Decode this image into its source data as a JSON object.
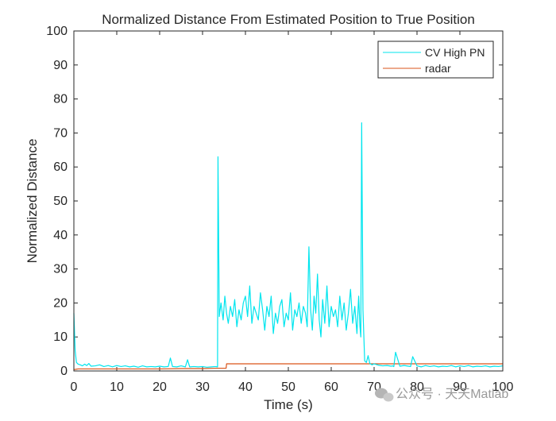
{
  "chart_data": {
    "type": "line",
    "title": "Normalized Distance From Estimated Position to True Position",
    "xlabel": "Time (s)",
    "ylabel": "Normalized Distance",
    "xlim": [
      0,
      100
    ],
    "ylim": [
      0,
      100
    ],
    "xticks": [
      0,
      10,
      20,
      30,
      40,
      50,
      60,
      70,
      80,
      90,
      100
    ],
    "yticks": [
      0,
      10,
      20,
      30,
      40,
      50,
      60,
      70,
      80,
      90,
      100
    ],
    "grid": false,
    "legend_position": "top-right",
    "series": [
      {
        "name": "CV High PN",
        "color": "#00e5ee",
        "x": [
          0,
          0.3,
          0.6,
          1,
          1.5,
          2,
          2.5,
          3,
          3.5,
          4,
          5,
          6,
          7,
          8,
          9,
          10,
          11,
          12,
          13,
          14,
          15,
          16,
          17,
          18,
          19,
          20,
          21,
          22,
          22.5,
          23,
          24,
          25,
          26,
          26.5,
          27,
          28,
          29,
          30,
          31,
          32,
          33,
          33.5,
          33.6,
          33.9,
          34.3,
          34.8,
          35.2,
          35.6,
          36,
          36.5,
          37,
          37.5,
          38,
          38.5,
          39,
          39.5,
          40,
          40.5,
          41,
          41.5,
          42,
          42.5,
          43,
          43.5,
          44,
          44.5,
          45,
          45.5,
          46,
          46.5,
          47,
          47.5,
          48,
          48.5,
          49,
          49.5,
          50,
          50.5,
          51,
          51.5,
          52,
          52.5,
          53,
          53.5,
          54,
          54.4,
          54.8,
          55.2,
          55.6,
          56,
          56.4,
          56.8,
          57.2,
          57.6,
          58,
          58.5,
          59,
          59.5,
          60,
          60.5,
          61,
          61.5,
          62,
          62.5,
          63,
          63.5,
          64,
          64.5,
          65,
          65.5,
          66,
          66.4,
          66.7,
          66.9,
          67.1,
          67.4,
          67.8,
          68.2,
          68.6,
          69,
          69.5,
          70,
          71,
          72,
          73,
          74,
          74.3,
          74.6,
          75,
          76,
          77,
          78,
          78.5,
          79,
          80,
          81,
          82,
          83,
          84,
          85,
          86,
          87,
          88,
          89,
          90,
          91,
          92,
          93,
          94,
          95,
          96,
          97,
          98,
          99,
          100
        ],
        "values": [
          17,
          6,
          2.5,
          2,
          1.8,
          1.5,
          2,
          1.6,
          2.2,
          1.4,
          1.5,
          1.8,
          1.3,
          1.6,
          1.2,
          1.6,
          1.3,
          1.5,
          1.2,
          1.4,
          1.1,
          1.5,
          1.2,
          1.3,
          1.2,
          1.4,
          1.2,
          1.3,
          3.8,
          1.3,
          1.2,
          1.5,
          1.2,
          3.3,
          1.2,
          1.3,
          1.2,
          1.3,
          1.1,
          1.2,
          1.3,
          1.2,
          63,
          16,
          20,
          15,
          22,
          17,
          14,
          19,
          16,
          21,
          13,
          18,
          15,
          20,
          22,
          16,
          25,
          14,
          19,
          17,
          15,
          23,
          18,
          12,
          19,
          16,
          22,
          11,
          17,
          14,
          19,
          21,
          13,
          17,
          15,
          23,
          12,
          18,
          16,
          20,
          14,
          19,
          17,
          13,
          36.5,
          18,
          12,
          22,
          17,
          28.5,
          15,
          10,
          21,
          14,
          25,
          13,
          19,
          16,
          18,
          13,
          22,
          15,
          20,
          12,
          17,
          24,
          14,
          19,
          11,
          22,
          13,
          10,
          73,
          18,
          3,
          2.5,
          4.5,
          2.2,
          1.8,
          2.1,
          1.7,
          1.5,
          1.6,
          1.4,
          1.5,
          1.3,
          5.5,
          1.4,
          1.6,
          1.4,
          1.3,
          4.2,
          1.5,
          1.2,
          1.6,
          1.3,
          1.5,
          1.2,
          1.4,
          1.3,
          1.6,
          1.2,
          1.5,
          1.3,
          1.6,
          1.2,
          1.4,
          1.3,
          1.5,
          1.2,
          1.4,
          1.3,
          1.5
        ]
      },
      {
        "name": "radar",
        "color": "#d95319",
        "x": [
          0,
          0.5,
          1,
          2,
          3,
          5,
          10,
          15,
          20,
          25,
          30,
          33,
          35.5,
          35.6,
          40,
          45,
          50,
          55,
          60,
          65,
          68,
          70,
          74.4,
          74.5,
          80,
          90,
          100
        ],
        "values": [
          0.4,
          0.5,
          0.6,
          0.6,
          0.6,
          0.6,
          0.6,
          0.6,
          0.6,
          0.7,
          0.7,
          0.8,
          0.8,
          2.1,
          2.1,
          2.1,
          2.1,
          2.1,
          2.1,
          2.1,
          2.1,
          2.1,
          2.1,
          2.1,
          2.1,
          2.1,
          2.1
        ]
      }
    ]
  },
  "watermark": {
    "icon": "wechat-icon",
    "text": "公众号 · 天天Matlab"
  }
}
